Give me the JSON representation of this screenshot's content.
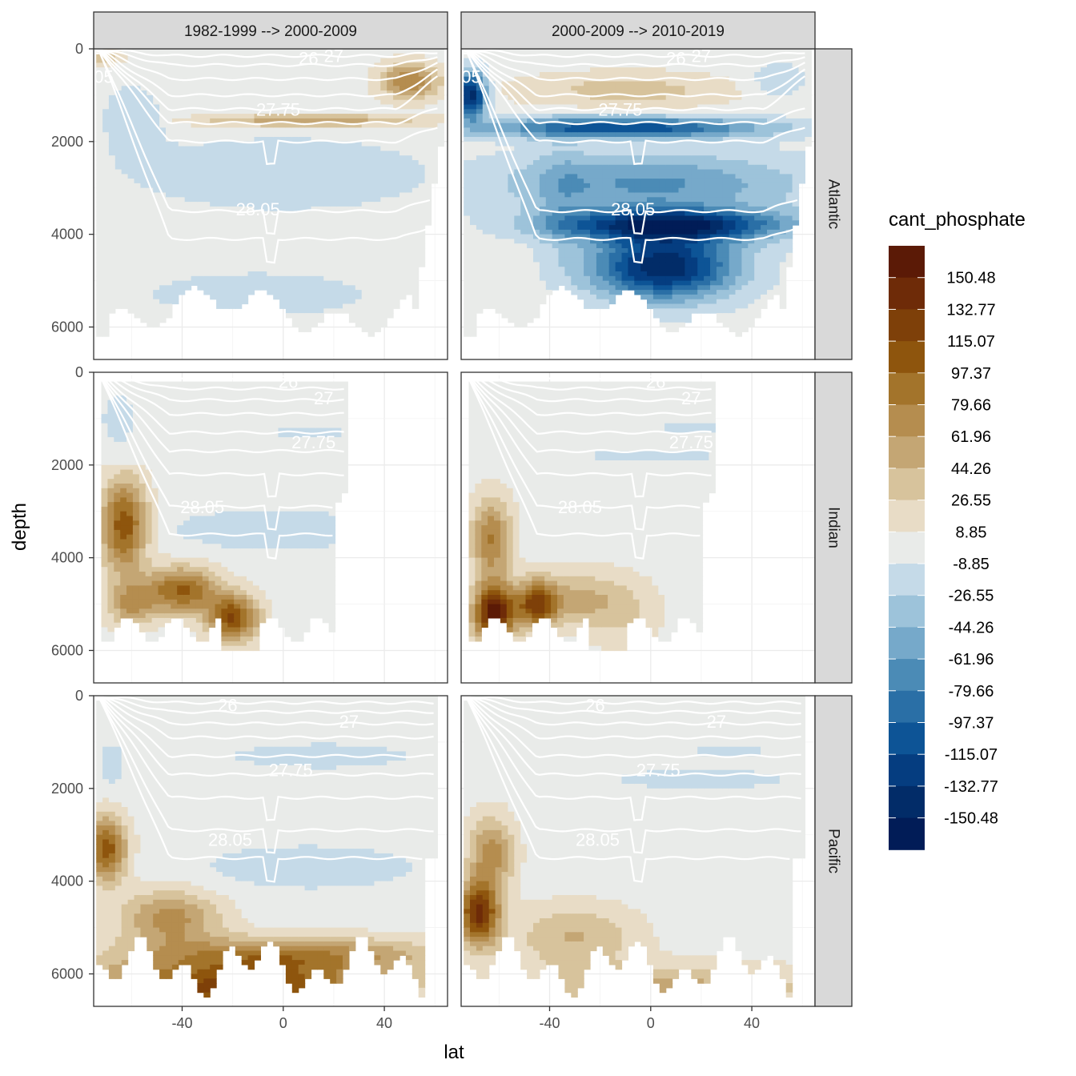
{
  "chart_data": {
    "type": "heatmap",
    "variable": "cant_phosphate",
    "xlabel": "lat",
    "ylabel": "depth",
    "x_ticks": [
      -40,
      0,
      40
    ],
    "y_ticks": [
      0,
      2000,
      4000,
      6000
    ],
    "xlim": [
      -75,
      65
    ],
    "ylim": [
      6700,
      0
    ],
    "columns": [
      "1982-1999 --> 2000-2009",
      "2000-2009 --> 2010-2019"
    ],
    "rows": [
      "Atlantic",
      "Indian",
      "Pacific"
    ],
    "isopycnal_labels": [
      "26",
      "27",
      "27.75",
      "28.05",
      ".05"
    ],
    "legend": {
      "title": "cant_phosphate",
      "breaks": [
        "150.48",
        "132.77",
        "115.07",
        "97.37",
        "79.66",
        "61.96",
        "44.26",
        "26.55",
        "8.85",
        "-8.85",
        "-26.55",
        "-44.26",
        "-61.96",
        "-79.66",
        "-97.37",
        "-115.07",
        "-132.77",
        "-150.48"
      ],
      "colors": [
        "#5b1a06",
        "#6e2b08",
        "#7e4009",
        "#8e550d",
        "#a3742b",
        "#b58d4f",
        "#c4a674",
        "#d7c39c",
        "#e8dcc6",
        "#e9ebe9",
        "#c5dae8",
        "#9dc3da",
        "#76a9ca",
        "#4b8bb6",
        "#2a6fa6",
        "#0d5496",
        "#053d80",
        "#022c68",
        "#011c57"
      ]
    },
    "panels": [
      {
        "row": "Atlantic",
        "column": "1982-1999 --> 2000-2009",
        "summary": "warm band near 1500 m; light negative 2000-3500 m",
        "labels": [
          {
            "text": "27.75",
            "lat": -2,
            "depth": 1300
          },
          {
            "text": "28.05",
            "lat": -10,
            "depth": 3450
          },
          {
            "text": "26",
            "lat": 10,
            "depth": 200
          },
          {
            "text": "27",
            "lat": 20,
            "depth": 150
          },
          {
            "text": ".05",
            "lat": -72,
            "depth": 600
          }
        ]
      },
      {
        "row": "Atlantic",
        "column": "2000-2009 --> 2010-2019",
        "summary": "strong negative anomalies below 1500 m",
        "labels": [
          {
            "text": "27.75",
            "lat": -12,
            "depth": 1300
          },
          {
            "text": "28.05",
            "lat": -7,
            "depth": 3450
          },
          {
            "text": "26",
            "lat": 10,
            "depth": 200
          },
          {
            "text": "27",
            "lat": 20,
            "depth": 150
          },
          {
            "text": ".05",
            "lat": -72,
            "depth": 600
          }
        ]
      },
      {
        "row": "Indian",
        "column": "1982-1999 --> 2000-2009",
        "summary": "strong positive in deep southern water",
        "labels": [
          {
            "text": "27.75",
            "lat": 12,
            "depth": 1500
          },
          {
            "text": "28.05",
            "lat": -32,
            "depth": 2900
          },
          {
            "text": "26",
            "lat": 2,
            "depth": 200
          },
          {
            "text": "27",
            "lat": 16,
            "depth": 550
          }
        ]
      },
      {
        "row": "Indian",
        "column": "2000-2009 --> 2010-2019",
        "summary": "strongest positive near -60 at 5000 m",
        "labels": [
          {
            "text": "27.75",
            "lat": 16,
            "depth": 1500
          },
          {
            "text": "28.05",
            "lat": -28,
            "depth": 2900
          },
          {
            "text": "26",
            "lat": 2,
            "depth": 200
          },
          {
            "text": "27",
            "lat": 16,
            "depth": 550
          }
        ]
      },
      {
        "row": "Pacific",
        "column": "1982-1999 --> 2000-2009",
        "summary": "positive deep band, negative mid-depth",
        "labels": [
          {
            "text": "27.75",
            "lat": 3,
            "depth": 1600
          },
          {
            "text": "28.05",
            "lat": -21,
            "depth": 3100
          },
          {
            "text": "26",
            "lat": -22,
            "depth": 200
          },
          {
            "text": "27",
            "lat": 26,
            "depth": 550
          }
        ]
      },
      {
        "row": "Pacific",
        "column": "2000-2009 --> 2010-2019",
        "summary": "moderate positive deep band",
        "labels": [
          {
            "text": "27.75",
            "lat": 3,
            "depth": 1600
          },
          {
            "text": "28.05",
            "lat": -21,
            "depth": 3100
          },
          {
            "text": "26",
            "lat": -22,
            "depth": 200
          },
          {
            "text": "27",
            "lat": 26,
            "depth": 550
          }
        ]
      }
    ]
  }
}
